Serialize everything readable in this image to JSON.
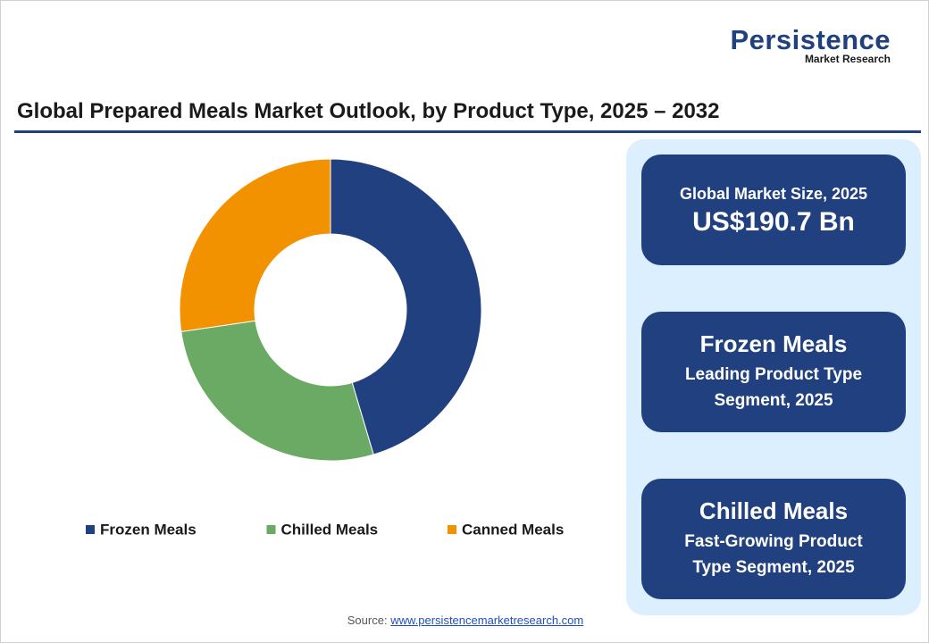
{
  "logo": {
    "name": "Persistence",
    "tagline": "Market Research"
  },
  "chart_data": {
    "type": "donut",
    "title": "Global Prepared Meals Market Outlook, by Product Type, 2025 – 2032",
    "categories": [
      "Frozen Meals",
      "Chilled Meals",
      "Canned Meals"
    ],
    "values": [
      45.4,
      27.3,
      27.3
    ],
    "colors": [
      "#21407f",
      "#6aaa64",
      "#f39200"
    ],
    "legend": "bottom"
  },
  "cards": [
    {
      "heading": "Global Market Size, 2025",
      "value": "US$190.7 Bn"
    },
    {
      "heading": "Frozen Meals",
      "value": "Leading Product Type Segment, 2025"
    },
    {
      "heading": "Chilled Meals",
      "value": "Fast-Growing Product Type Segment, 2025"
    }
  ],
  "source": {
    "label": "Source:",
    "link": "www.persistencemarketresearch.com"
  }
}
